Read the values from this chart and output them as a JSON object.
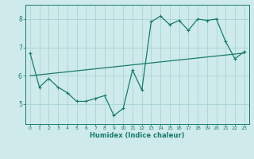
{
  "line1_x": [
    0,
    1,
    2,
    3,
    4,
    5,
    6,
    7,
    8,
    9,
    10,
    11,
    12,
    13,
    14,
    15,
    16,
    17,
    18,
    19,
    20,
    21,
    22,
    23
  ],
  "line1_y": [
    6.8,
    5.6,
    5.9,
    5.6,
    5.4,
    5.1,
    5.1,
    5.2,
    5.3,
    4.6,
    4.85,
    6.2,
    5.5,
    7.9,
    8.1,
    7.8,
    7.95,
    7.6,
    8.0,
    7.95,
    8.0,
    7.2,
    6.6,
    6.85
  ],
  "line2_x": [
    0,
    23
  ],
  "line2_y": [
    6.0,
    6.8
  ],
  "color": "#1a7a6e",
  "bg_color": "#ceeaea",
  "grid_color": "#aad4d4",
  "xlabel": "Humidex (Indice chaleur)",
  "xlim": [
    -0.5,
    23.5
  ],
  "ylim": [
    4.3,
    8.5
  ],
  "yticks": [
    5,
    6,
    7,
    8
  ],
  "xticks": [
    0,
    1,
    2,
    3,
    4,
    5,
    6,
    7,
    8,
    9,
    10,
    11,
    12,
    13,
    14,
    15,
    16,
    17,
    18,
    19,
    20,
    21,
    22,
    23
  ]
}
